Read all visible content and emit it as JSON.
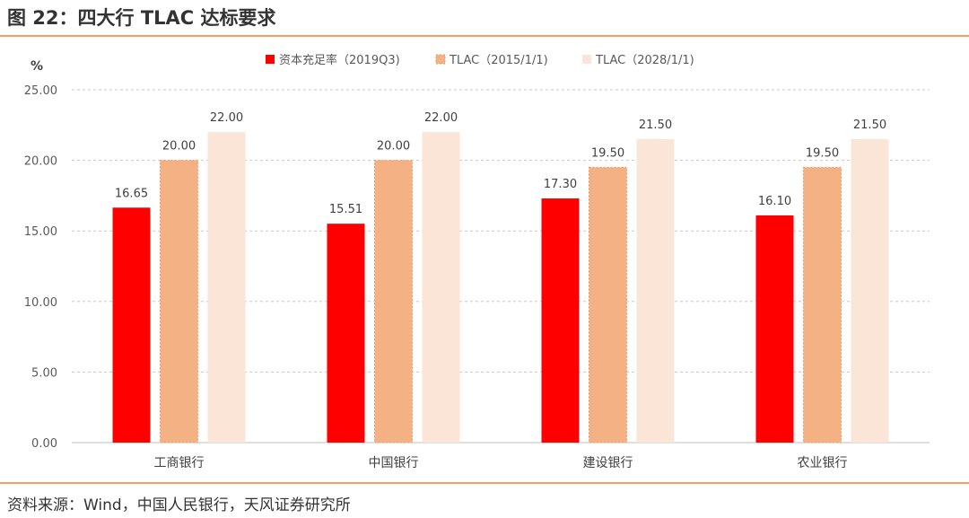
{
  "header": {
    "title": "图 22：四大行 TLAC 达标要求"
  },
  "footer": {
    "source": "资料来源：Wind，中国人民银行，天风证券研究所"
  },
  "colors": {
    "accent_rule": "#f0a062",
    "grid": "#c8c8c8"
  },
  "chart_data": {
    "type": "bar",
    "title": "",
    "xlabel": "",
    "ylabel": "%",
    "ylim": [
      0,
      25
    ],
    "yticks": [
      "0.00",
      "5.00",
      "10.00",
      "15.00",
      "20.00",
      "25.00"
    ],
    "grid": true,
    "legend_position": "top",
    "categories": [
      "工商银行",
      "中国银行",
      "建设银行",
      "农业银行"
    ],
    "series": [
      {
        "name": "资本充足率（2019Q3)",
        "color": "#ff0000",
        "values": [
          16.65,
          15.51,
          17.3,
          16.1
        ],
        "labels": [
          "16.65",
          "15.51",
          "17.30",
          "16.10"
        ]
      },
      {
        "name": "TLAC（2015/1/1)",
        "color": "#f4b183",
        "values": [
          20.0,
          20.0,
          19.5,
          19.5
        ],
        "labels": [
          "20.00",
          "20.00",
          "19.50",
          "19.50"
        ]
      },
      {
        "name": "TLAC（2028/1/1)",
        "color": "#fbe5d6",
        "values": [
          22.0,
          22.0,
          21.5,
          21.5
        ],
        "labels": [
          "22.00",
          "22.00",
          "21.50",
          "21.50"
        ]
      }
    ]
  }
}
